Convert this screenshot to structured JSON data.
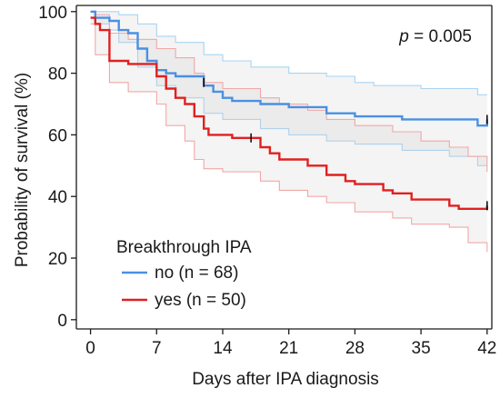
{
  "chart_data": {
    "type": "line",
    "subtype": "kaplan-meier survival curve with confidence bands",
    "xlabel": "Days after IPA diagnosis",
    "ylabel": "Probability of survival (%)",
    "xlim": [
      -1.5,
      42.5
    ],
    "ylim": [
      -3,
      102
    ],
    "xticks": [
      0,
      7,
      14,
      21,
      28,
      35,
      42
    ],
    "yticks": [
      0,
      20,
      40,
      60,
      80,
      100
    ],
    "grid": false,
    "annotation": {
      "p_italic": "p",
      "p_rest": " = 0.005"
    },
    "legend": {
      "title": "Breakthrough IPA",
      "placement": "bottom-left"
    },
    "series": [
      {
        "name": "no (n = 68)",
        "color": "#4a90e2",
        "band_color": "#a9d3f2",
        "steps": [
          [
            0,
            100
          ],
          [
            0.5,
            98
          ],
          [
            2,
            97
          ],
          [
            3,
            94
          ],
          [
            4,
            93
          ],
          [
            5,
            88
          ],
          [
            6,
            84
          ],
          [
            7,
            81
          ],
          [
            8,
            80
          ],
          [
            9,
            79
          ],
          [
            12,
            76
          ],
          [
            13,
            74
          ],
          [
            14,
            72
          ],
          [
            15,
            71
          ],
          [
            18,
            70
          ],
          [
            21,
            69
          ],
          [
            25,
            67
          ],
          [
            28,
            66
          ],
          [
            33,
            65
          ],
          [
            41,
            63
          ],
          [
            42,
            65
          ]
        ],
        "upper": [
          [
            0,
            100
          ],
          [
            0.5,
            100
          ],
          [
            3,
            99
          ],
          [
            5,
            96
          ],
          [
            7,
            92
          ],
          [
            9,
            90
          ],
          [
            12,
            86
          ],
          [
            14,
            84
          ],
          [
            17,
            82
          ],
          [
            21,
            80
          ],
          [
            25,
            79
          ],
          [
            28,
            77
          ],
          [
            30,
            76
          ],
          [
            35,
            75
          ],
          [
            41,
            73
          ],
          [
            42,
            73
          ]
        ],
        "lower": [
          [
            0,
            100
          ],
          [
            0.5,
            96
          ],
          [
            2,
            94
          ],
          [
            3,
            90
          ],
          [
            5,
            82
          ],
          [
            7,
            76
          ],
          [
            9,
            72
          ],
          [
            12,
            67
          ],
          [
            14,
            65
          ],
          [
            18,
            62
          ],
          [
            21,
            60
          ],
          [
            25,
            58
          ],
          [
            28,
            57
          ],
          [
            33,
            55
          ],
          [
            38,
            53
          ],
          [
            41,
            50
          ],
          [
            42,
            50
          ]
        ],
        "censors": [
          [
            12,
            77
          ],
          [
            42,
            65
          ]
        ]
      },
      {
        "name": "yes (n = 50)",
        "color": "#e02020",
        "band_color": "#f2a7a7",
        "steps": [
          [
            0,
            98
          ],
          [
            0.5,
            96
          ],
          [
            1,
            94
          ],
          [
            2,
            84
          ],
          [
            4,
            83
          ],
          [
            7,
            79
          ],
          [
            8,
            75
          ],
          [
            9,
            72
          ],
          [
            10,
            70
          ],
          [
            11,
            66
          ],
          [
            12,
            62
          ],
          [
            12.5,
            60
          ],
          [
            15,
            59
          ],
          [
            18,
            56
          ],
          [
            19,
            54
          ],
          [
            20,
            52
          ],
          [
            23,
            50
          ],
          [
            25,
            47
          ],
          [
            27,
            45
          ],
          [
            28,
            44
          ],
          [
            31,
            42
          ],
          [
            32,
            41
          ],
          [
            34,
            39
          ],
          [
            38,
            37
          ],
          [
            39,
            36
          ],
          [
            42,
            36
          ],
          [
            42,
            37
          ]
        ],
        "upper": [
          [
            0,
            100
          ],
          [
            0.5,
            99
          ],
          [
            2,
            93
          ],
          [
            4,
            91
          ],
          [
            7,
            88
          ],
          [
            9,
            85
          ],
          [
            11,
            80
          ],
          [
            12,
            77
          ],
          [
            14,
            75
          ],
          [
            18,
            72
          ],
          [
            20,
            70
          ],
          [
            23,
            68
          ],
          [
            25,
            65
          ],
          [
            28,
            63
          ],
          [
            32,
            61
          ],
          [
            35,
            58
          ],
          [
            38,
            56
          ],
          [
            40,
            53
          ],
          [
            42,
            48
          ]
        ],
        "lower": [
          [
            0,
            96
          ],
          [
            0.5,
            86
          ],
          [
            2,
            77
          ],
          [
            4,
            74
          ],
          [
            7,
            70
          ],
          [
            8,
            63
          ],
          [
            10,
            58
          ],
          [
            11,
            52
          ],
          [
            12,
            49
          ],
          [
            14,
            48
          ],
          [
            18,
            45
          ],
          [
            20,
            42
          ],
          [
            23,
            40
          ],
          [
            25,
            38
          ],
          [
            28,
            35
          ],
          [
            32,
            33
          ],
          [
            34,
            31
          ],
          [
            38,
            30
          ],
          [
            40,
            25
          ],
          [
            42,
            22
          ]
        ],
        "censors": [
          [
            17,
            59
          ],
          [
            42,
            37
          ]
        ]
      }
    ]
  }
}
